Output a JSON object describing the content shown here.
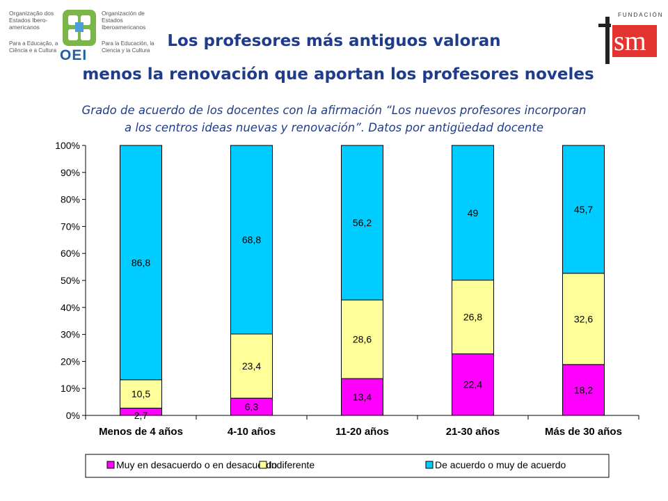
{
  "header": {
    "oei_left_name": "Organização dos Estados Ibero-americanos",
    "oei_left_tagline": "Para a Educação, a Ciência e a Cultura",
    "oei_right_name": "Organización de Estados Iberoamericanos",
    "oei_right_tagline": "Para la Educación, la Ciencia y la Cultura",
    "oei_acronym": "OEI",
    "fsm_fundacion": "FUNDACIÓN",
    "fsm_mark": "sm",
    "title_line1": "Los profesores más antiguos valoran",
    "title_line2": "menos la renovación que aportan los profesores noveles",
    "subtitle_line1": "Grado de acuerdo de los docentes con la afirmación “Los nuevos profesores incorporan",
    "subtitle_line2": "a los centros ideas nuevas y renovación”. Datos por antigüedad docente"
  },
  "colors": {
    "title": "#1f3c8c",
    "series1": "#ff00ff",
    "series2": "#ffff99",
    "series3": "#00ccff",
    "fsm_red": "#e3342f"
  },
  "chart_data": {
    "type": "bar",
    "stacked": true,
    "percent_axis": true,
    "categories": [
      "Menos de 4 años",
      "4-10 años",
      "11-20 años",
      "21-30 años",
      "Más de 30 años"
    ],
    "series": [
      {
        "name": "Muy en desacuerdo o en desacuerdo",
        "values": [
          2.7,
          6.3,
          13.4,
          22.4,
          18.2
        ],
        "labels": [
          "2,7",
          "6,3",
          "13,4",
          "22,4",
          "18,2"
        ]
      },
      {
        "name": "Indiferente",
        "values": [
          10.5,
          23.4,
          28.6,
          26.8,
          32.6
        ],
        "labels": [
          "10,5",
          "23,4",
          "28,6",
          "26,8",
          "32,6"
        ]
      },
      {
        "name": "De acuerdo o muy de acuerdo",
        "values": [
          86.8,
          68.8,
          56.2,
          49,
          45.7
        ],
        "labels": [
          "86,8",
          "68,8",
          "56,2",
          "49",
          "45,7"
        ]
      }
    ],
    "yticks": [
      "0%",
      "10%",
      "20%",
      "30%",
      "40%",
      "50%",
      "60%",
      "70%",
      "80%",
      "90%",
      "100%"
    ],
    "ylim": [
      0,
      100
    ],
    "grid": false,
    "legend": "bottom"
  }
}
